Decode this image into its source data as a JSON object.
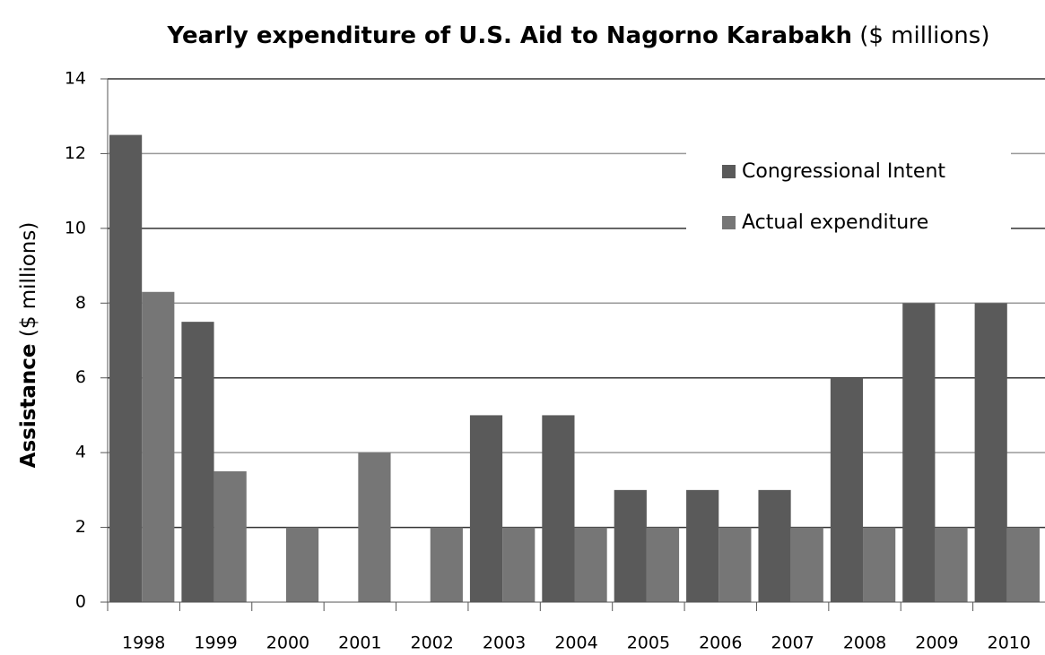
{
  "chart_data": {
    "type": "bar",
    "title": "Yearly expenditure of U.S. Aid to Nagorno Karabakh",
    "title_note": "($ millions)",
    "y_label": "Assistance",
    "y_label_note": "($ millions)",
    "categories": [
      "1998",
      "1999",
      "2000",
      "2001",
      "2002",
      "2003",
      "2004",
      "2005",
      "2006",
      "2007",
      "2008",
      "2009",
      "2010"
    ],
    "series": [
      {
        "name": "Congressional Intent",
        "color": "#5a5a5a",
        "values": [
          12.5,
          7.5,
          null,
          null,
          null,
          5,
          5,
          3,
          3,
          3,
          6,
          8,
          8
        ]
      },
      {
        "name": "Actual expenditure",
        "color": "#767676",
        "values": [
          8.3,
          3.5,
          2,
          4,
          2,
          2,
          2,
          2,
          2,
          2,
          2,
          2,
          2
        ]
      }
    ],
    "ylim": [
      0,
      14
    ],
    "yticks": [
      0,
      2,
      4,
      6,
      8,
      10,
      12,
      14
    ],
    "grid": true,
    "legend": "upper right"
  }
}
